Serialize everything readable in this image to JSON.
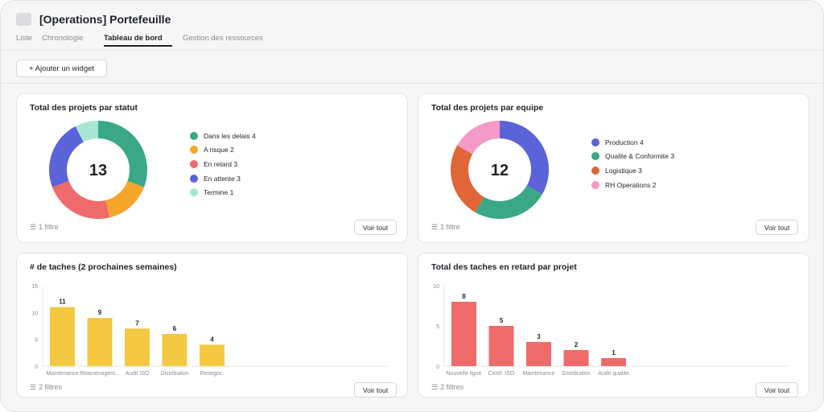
{
  "header": {
    "title": "[Operations] Portefeuille",
    "tabs": [
      "Liste",
      "Chronologie",
      "Tableau de bord",
      "Gestion des ressources"
    ],
    "active_tab": "Tableau de bord"
  },
  "toolbar": {
    "add_widget_label": "+ Ajouter un widget"
  },
  "cards": {
    "status": {
      "title": "Total des projets par statut",
      "center_value": "13",
      "legend": [
        {
          "label": "Dans les delais 4",
          "color": "#3aa886"
        },
        {
          "label": "A risque 2",
          "color": "#f5a52a"
        },
        {
          "label": "En retard 3",
          "color": "#ef6b6b"
        },
        {
          "label": "En attente 3",
          "color": "#5b63d8"
        },
        {
          "label": "Termine 1",
          "color": "#a8e6d4"
        }
      ],
      "filter_label": "1 filtre",
      "button_label": "Voir tout"
    },
    "team": {
      "title": "Total des projets par equipe",
      "center_value": "12",
      "legend": [
        {
          "label": "Production 4",
          "color": "#5b63d8"
        },
        {
          "label": "Qualite & Conformite 3",
          "color": "#3aa886"
        },
        {
          "label": "Logistique 3",
          "color": "#e0663a"
        },
        {
          "label": "RH Operations 2",
          "color": "#f39ac7"
        }
      ],
      "filter_label": "1 filtre",
      "button_label": "Voir tout"
    },
    "tasks": {
      "title": "# de taches (2 prochaines semaines)",
      "filter_label": "2 filtres",
      "button_label": "Voir tout"
    },
    "late": {
      "title": "Total des taches en retard par projet",
      "filter_label": "2 filtres",
      "button_label": "Voir tout"
    }
  },
  "chart_data": [
    {
      "type": "pie",
      "categories": [
        "Dans les delais",
        "A risque",
        "En retard",
        "En attente",
        "Termine"
      ],
      "values": [
        4,
        2,
        3,
        3,
        1
      ],
      "colors": [
        "#3aa886",
        "#f5a52a",
        "#ef6b6b",
        "#5b63d8",
        "#a8e6d4"
      ],
      "center_label": "13",
      "title": "Total des projets par statut"
    },
    {
      "type": "pie",
      "categories": [
        "Production",
        "Qualite & Conformite",
        "Logistique",
        "RH Operations"
      ],
      "values": [
        4,
        3,
        3,
        2
      ],
      "colors": [
        "#5b63d8",
        "#3aa886",
        "#e0663a",
        "#f39ac7"
      ],
      "center_label": "12",
      "title": "Total des projets par equipe"
    },
    {
      "type": "bar",
      "categories": [
        "Maintenance",
        "Reamenagem...",
        "Audit ISO",
        "Distribution",
        "Renegoc."
      ],
      "values": [
        11,
        9,
        7,
        6,
        4
      ],
      "color": "#f5c842",
      "yticks": [
        0,
        5,
        10,
        15
      ],
      "ylim": [
        0,
        15
      ],
      "title": "# de taches (2 prochaines semaines)"
    },
    {
      "type": "bar",
      "categories": [
        "Nouvelle ligne",
        "Certif. ISO",
        "Maintenance",
        "Distribution",
        "Audit qualite"
      ],
      "values": [
        8,
        5,
        3,
        2,
        1
      ],
      "color": "#ef6b6b",
      "yticks": [
        0,
        5,
        10
      ],
      "ylim": [
        0,
        10
      ],
      "title": "Total des taches en retard par projet"
    }
  ]
}
